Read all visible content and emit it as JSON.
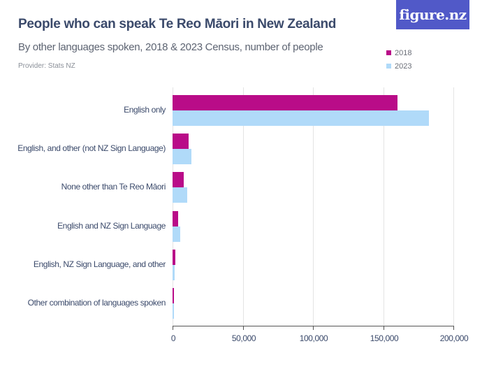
{
  "header": {
    "title": "People who can speak Te Reo Māori in New Zealand",
    "subtitle": "By other languages spoken, 2018 & 2023 Census, number of people",
    "provider": "Provider: Stats NZ",
    "logo": "figure.nz"
  },
  "legend": [
    {
      "label": "2018",
      "color": "#b90c88"
    },
    {
      "label": "2023",
      "color": "#b0daf9"
    }
  ],
  "axis": {
    "ticks": [
      "0",
      "50,000",
      "100,000",
      "150,000",
      "200,000"
    ]
  },
  "chart_data": {
    "type": "bar",
    "orientation": "horizontal",
    "title": "People who can speak Te Reo Māori in New Zealand",
    "subtitle": "By other languages spoken, 2018 & 2023 Census, number of people",
    "xlabel": "",
    "ylabel": "",
    "xlim": [
      0,
      200000
    ],
    "xticks": [
      0,
      50000,
      100000,
      150000,
      200000
    ],
    "grid": true,
    "legend_position": "top-right",
    "categories": [
      "English only",
      "English, and other (not NZ Sign Language)",
      "None other than Te Reo Māori",
      "English and NZ Sign Language",
      "English, NZ Sign Language, and other",
      "Other combination of languages spoken"
    ],
    "series": [
      {
        "name": "2018",
        "color": "#b90c88",
        "values": [
          160200,
          11400,
          8100,
          3800,
          1800,
          850
        ]
      },
      {
        "name": "2023",
        "color": "#b0daf9",
        "values": [
          182600,
          13300,
          10400,
          5300,
          1700,
          800
        ]
      }
    ]
  }
}
